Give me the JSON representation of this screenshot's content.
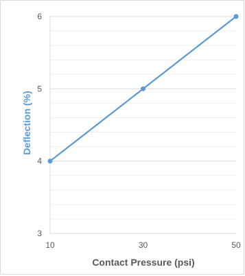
{
  "chart_data": {
    "type": "line",
    "title": "",
    "xlabel": "Contact Pressure (psi)",
    "ylabel": "Deflection (%)",
    "x_ticks": [
      "10",
      "30",
      "50"
    ],
    "y_ticks": [
      "3",
      "4",
      "5",
      "6"
    ],
    "xlim": [
      10,
      50
    ],
    "ylim": [
      3,
      6
    ],
    "minor_gridlines": true,
    "legend": "none",
    "colors": {
      "series": "#5b9bd5",
      "ylabel": "#5b9bd5",
      "major_grid": "#d9d9d9",
      "minor_grid": "#efefef",
      "tick_text": "#595959"
    },
    "series": [
      {
        "x": [
          10,
          30,
          50
        ],
        "y": [
          4,
          5,
          6
        ]
      }
    ]
  }
}
